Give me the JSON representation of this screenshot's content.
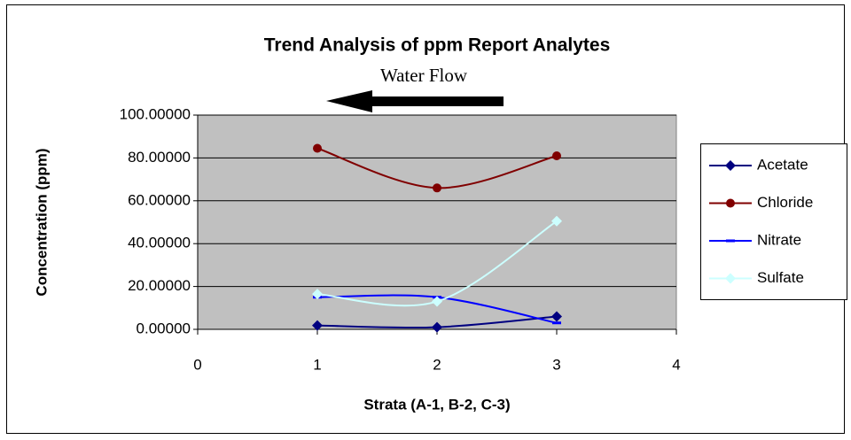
{
  "chart_data": {
    "type": "line",
    "title": "Trend Analysis of ppm Report Analytes",
    "annotation": "Water Flow",
    "x_label": "Strata (A-1, B-2, C-3)",
    "y_label": "Concentration (ppm)",
    "x": [
      1,
      2,
      3
    ],
    "series": [
      {
        "name": "Acetate",
        "color": "#000080",
        "marker": "diamond",
        "values": [
          1.8,
          1.0,
          6.0
        ]
      },
      {
        "name": "Chloride",
        "color": "#800000",
        "marker": "circle",
        "values": [
          84.5,
          66.0,
          81.0
        ]
      },
      {
        "name": "Nitrate",
        "color": "#0000ff",
        "marker": "dash",
        "values": [
          15.0,
          15.0,
          3.0
        ]
      },
      {
        "name": "Sulfate",
        "color": "#ccffff",
        "marker": "diamond",
        "values": [
          16.5,
          13.0,
          50.5
        ]
      }
    ],
    "xlim": [
      0,
      4
    ],
    "xticks": [
      0,
      1,
      2,
      3,
      4
    ],
    "ylim": [
      0,
      100
    ],
    "yticks": [
      {
        "value": 0,
        "label": "0.00000"
      },
      {
        "value": 20,
        "label": "20.00000"
      },
      {
        "value": 40,
        "label": "40.00000"
      },
      {
        "value": 60,
        "label": "60.00000"
      },
      {
        "value": 80,
        "label": "80.00000"
      },
      {
        "value": 100,
        "label": "100.00000"
      }
    ],
    "grid": true,
    "smooth": true,
    "legend": "right"
  }
}
